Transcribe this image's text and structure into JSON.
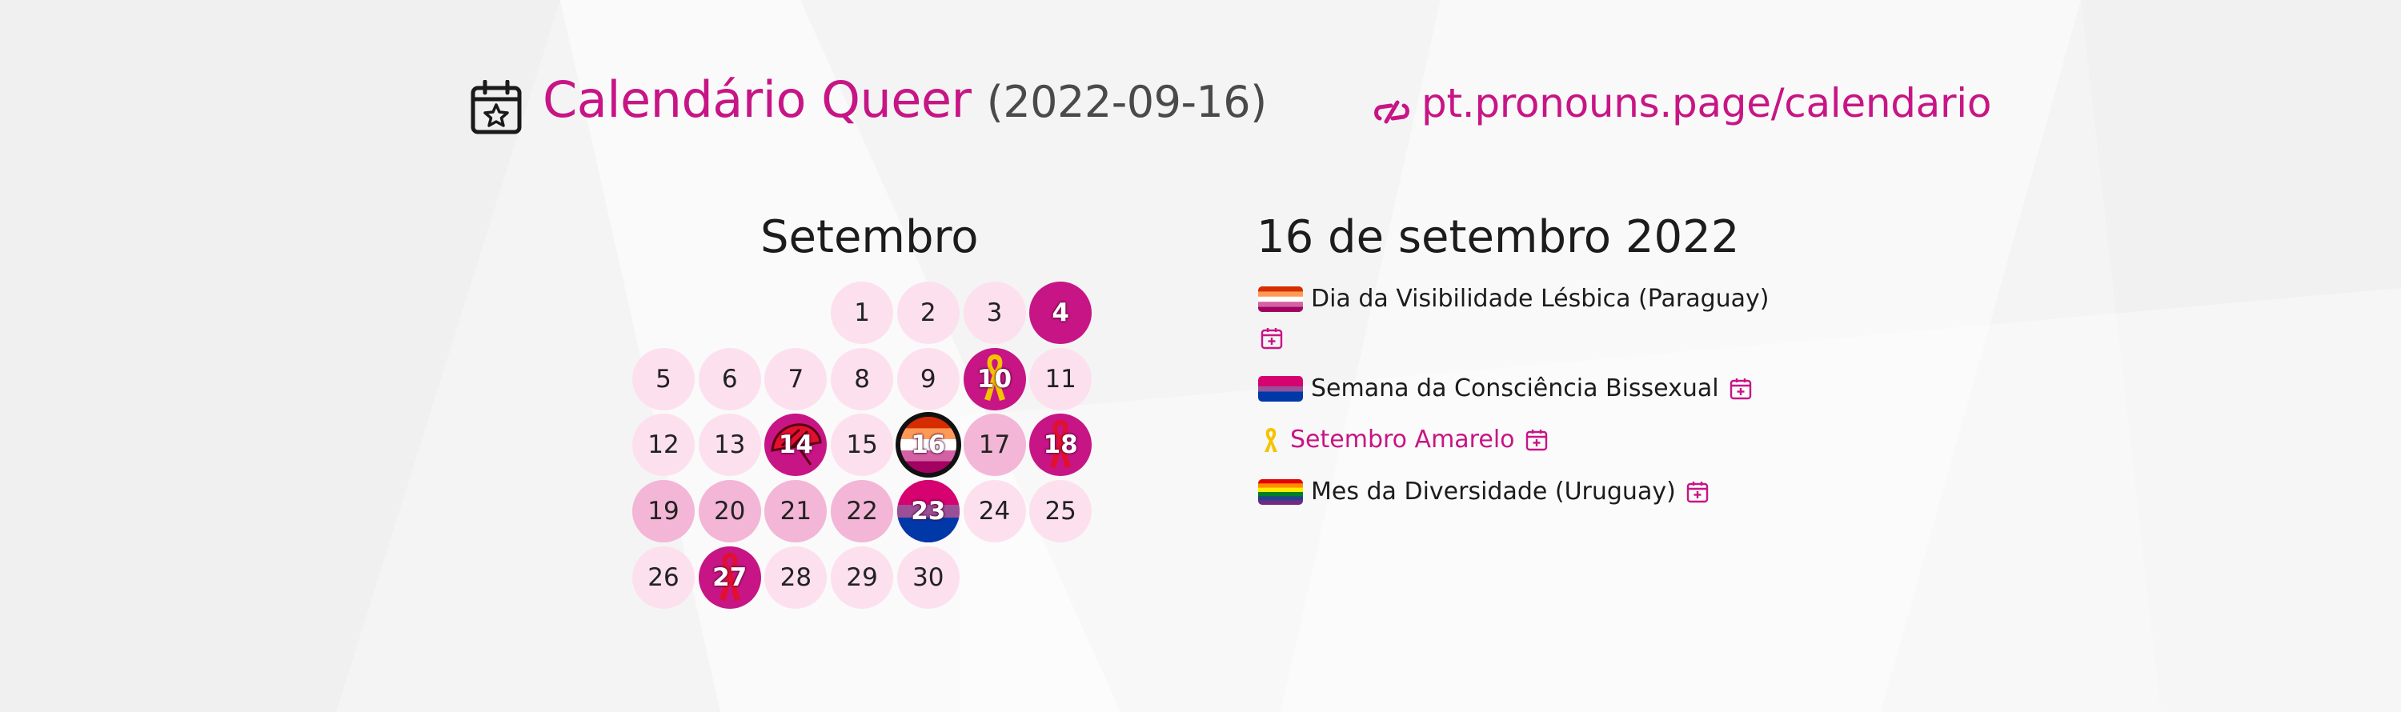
{
  "header": {
    "title": "Calendário Queer",
    "date": "(2022-09-16)",
    "link": "pt.pronouns.page/calendario"
  },
  "calendar": {
    "month": "Setembro",
    "days": [
      {
        "d": "1",
        "col": 3,
        "row": 0,
        "level": 0
      },
      {
        "d": "2",
        "col": 4,
        "row": 0,
        "level": 0
      },
      {
        "d": "3",
        "col": 5,
        "row": 0,
        "level": 0
      },
      {
        "d": "4",
        "col": 6,
        "row": 0,
        "level": 2
      },
      {
        "d": "5",
        "col": 0,
        "row": 1,
        "level": 0
      },
      {
        "d": "6",
        "col": 1,
        "row": 1,
        "level": 0
      },
      {
        "d": "7",
        "col": 2,
        "row": 1,
        "level": 0
      },
      {
        "d": "8",
        "col": 3,
        "row": 1,
        "level": 0
      },
      {
        "d": "9",
        "col": 4,
        "row": 1,
        "level": 0
      },
      {
        "d": "10",
        "col": 5,
        "row": 1,
        "level": 2,
        "icon": "yellow-ribbon-icon"
      },
      {
        "d": "11",
        "col": 6,
        "row": 1,
        "level": 0
      },
      {
        "d": "12",
        "col": 0,
        "row": 2,
        "level": 0
      },
      {
        "d": "13",
        "col": 1,
        "row": 2,
        "level": 0
      },
      {
        "d": "14",
        "col": 2,
        "row": 2,
        "level": 2,
        "icon": "red-umbrella-icon"
      },
      {
        "d": "15",
        "col": 3,
        "row": 2,
        "level": 0
      },
      {
        "d": "16",
        "col": 4,
        "row": 2,
        "level": 2,
        "icon": "lesbian-flag-icon",
        "today": true
      },
      {
        "d": "17",
        "col": 5,
        "row": 2,
        "level": 1
      },
      {
        "d": "18",
        "col": 6,
        "row": 2,
        "level": 2,
        "icon": "red-ribbon-icon"
      },
      {
        "d": "19",
        "col": 0,
        "row": 3,
        "level": 1
      },
      {
        "d": "20",
        "col": 1,
        "row": 3,
        "level": 1
      },
      {
        "d": "21",
        "col": 2,
        "row": 3,
        "level": 1
      },
      {
        "d": "22",
        "col": 3,
        "row": 3,
        "level": 1
      },
      {
        "d": "23",
        "col": 4,
        "row": 3,
        "level": 2,
        "icon": "bisexual-flag-icon"
      },
      {
        "d": "24",
        "col": 5,
        "row": 3,
        "level": 0
      },
      {
        "d": "25",
        "col": 6,
        "row": 3,
        "level": 0
      },
      {
        "d": "26",
        "col": 0,
        "row": 4,
        "level": 0
      },
      {
        "d": "27",
        "col": 1,
        "row": 4,
        "level": 2,
        "icon": "red-ribbon-icon"
      },
      {
        "d": "28",
        "col": 2,
        "row": 4,
        "level": 0
      },
      {
        "d": "29",
        "col": 3,
        "row": 4,
        "level": 0
      },
      {
        "d": "30",
        "col": 4,
        "row": 4,
        "level": 0
      }
    ]
  },
  "detail": {
    "title": "16 de setembro 2022",
    "events": [
      {
        "name": "Dia da Visibilidade Lésbica (Paraguay)",
        "icon": "lesbian-flag-icon"
      },
      {
        "name": "Semana da Consciência Bissexual",
        "icon": "bisexual-flag-icon"
      },
      {
        "name": "Setembro Amarelo",
        "icon": "yellow-ribbon-icon"
      },
      {
        "name": "Mes da Diversidade (Uruguay)",
        "icon": "rainbow-flag-icon"
      }
    ]
  },
  "colors": {
    "accent": "#c71585",
    "day_light": "#fde0ee",
    "day_medium": "#f3b6d6",
    "day_strong": "#c71585"
  }
}
